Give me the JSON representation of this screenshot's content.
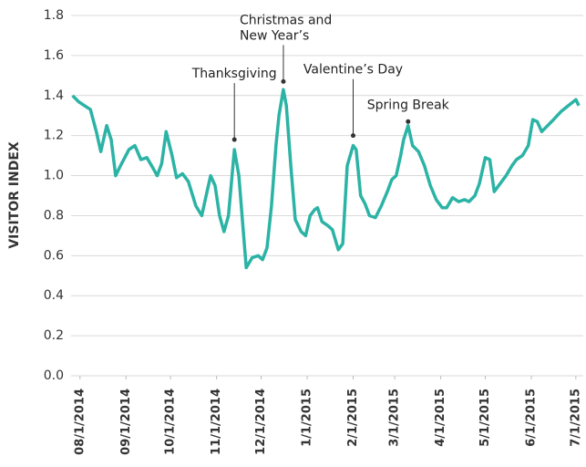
{
  "chart_data": {
    "type": "line",
    "ylabel": "VISITOR INDEX",
    "xlim": [
      "2014-07-26",
      "2015-07-06"
    ],
    "ylim": [
      0,
      1.8
    ],
    "yticks": [
      {
        "value": 0,
        "label": "0.0"
      },
      0.2,
      0.4,
      0.6,
      0.8,
      {
        "value": 1,
        "label": "1.0"
      },
      1.2,
      1.4,
      1.6,
      1.8
    ],
    "xticks": [
      {
        "value": "2014-08-01",
        "label": "08/1/2014"
      },
      {
        "value": "2014-09-01",
        "label": "09/1/2014"
      },
      {
        "value": "2014-10-01",
        "label": "10/1/2014"
      },
      {
        "value": "2014-11-01",
        "label": "11/1/2014"
      },
      {
        "value": "2014-12-01",
        "label": "12/1/2014"
      },
      {
        "value": "2015-01-01",
        "label": "1/1/2015"
      },
      {
        "value": "2015-02-01",
        "label": "2/1/2015"
      },
      {
        "value": "2015-03-01",
        "label": "3/1/2015"
      },
      {
        "value": "2015-04-01",
        "label": "4/1/2015"
      },
      {
        "value": "2015-05-01",
        "label": "5/1/2015"
      },
      {
        "value": "2015-06-01",
        "label": "6/1/2015"
      },
      {
        "value": "2015-07-01",
        "label": "7/1/2015"
      }
    ],
    "grid": true,
    "series": [
      {
        "name": "Visitor index",
        "color": "#2bb3a5",
        "x": [
          "2014-07-27",
          "2014-07-31",
          "2014-08-04",
          "2014-08-08",
          "2014-08-12",
          "2014-08-15",
          "2014-08-19",
          "2014-08-22",
          "2014-08-25",
          "2014-08-29",
          "2014-09-03",
          "2014-09-07",
          "2014-09-11",
          "2014-09-15",
          "2014-09-19",
          "2014-09-22",
          "2014-09-25",
          "2014-09-28",
          "2014-10-02",
          "2014-10-05",
          "2014-10-09",
          "2014-10-13",
          "2014-10-18",
          "2014-10-22",
          "2014-10-25",
          "2014-10-28",
          "2014-10-31",
          "2014-11-03",
          "2014-11-06",
          "2014-11-09",
          "2014-11-13",
          "2014-11-16",
          "2014-11-19",
          "2014-11-21",
          "2014-11-25",
          "2014-11-29",
          "2014-12-02",
          "2014-12-05",
          "2014-12-08",
          "2014-12-11",
          "2014-12-13",
          "2014-12-16",
          "2014-12-18",
          "2014-12-21",
          "2014-12-24",
          "2014-12-28",
          "2014-12-31",
          "2015-01-03",
          "2015-01-06",
          "2015-01-08",
          "2015-01-11",
          "2015-01-15",
          "2015-01-18",
          "2015-01-22",
          "2015-01-25",
          "2015-01-28",
          "2015-02-01",
          "2015-02-03",
          "2015-02-06",
          "2015-02-09",
          "2015-02-12",
          "2015-02-16",
          "2015-02-20",
          "2015-02-24",
          "2015-02-27",
          "2015-03-02",
          "2015-03-05",
          "2015-03-07",
          "2015-03-10",
          "2015-03-13",
          "2015-03-17",
          "2015-03-21",
          "2015-03-25",
          "2015-03-29",
          "2015-04-02",
          "2015-04-05",
          "2015-04-09",
          "2015-04-13",
          "2015-04-17",
          "2015-04-20",
          "2015-04-24",
          "2015-04-27",
          "2015-05-01",
          "2015-05-04",
          "2015-05-07",
          "2015-05-11",
          "2015-05-15",
          "2015-05-19",
          "2015-05-22",
          "2015-05-26",
          "2015-05-30",
          "2015-06-02",
          "2015-06-05",
          "2015-06-08",
          "2015-06-12",
          "2015-06-16",
          "2015-06-21",
          "2015-06-26",
          "2015-07-01",
          "2015-07-03"
        ],
        "values": [
          1.4,
          1.37,
          1.35,
          1.33,
          1.22,
          1.12,
          1.25,
          1.18,
          1.0,
          1.06,
          1.13,
          1.15,
          1.08,
          1.09,
          1.04,
          1.0,
          1.06,
          1.22,
          1.1,
          0.99,
          1.01,
          0.97,
          0.85,
          0.8,
          0.9,
          1.0,
          0.95,
          0.8,
          0.72,
          0.8,
          1.13,
          1.0,
          0.72,
          0.54,
          0.59,
          0.6,
          0.58,
          0.64,
          0.85,
          1.15,
          1.3,
          1.43,
          1.35,
          1.05,
          0.78,
          0.72,
          0.7,
          0.8,
          0.83,
          0.84,
          0.77,
          0.75,
          0.73,
          0.63,
          0.66,
          1.05,
          1.15,
          1.13,
          0.9,
          0.86,
          0.8,
          0.79,
          0.85,
          0.92,
          0.98,
          1.0,
          1.1,
          1.18,
          1.25,
          1.15,
          1.12,
          1.05,
          0.95,
          0.88,
          0.84,
          0.84,
          0.89,
          0.87,
          0.88,
          0.87,
          0.9,
          0.96,
          1.09,
          1.08,
          0.92,
          0.96,
          1.0,
          1.05,
          1.08,
          1.1,
          1.15,
          1.28,
          1.27,
          1.22,
          1.25,
          1.28,
          1.32,
          1.35,
          1.38,
          1.35
        ]
      }
    ],
    "annotations": [
      {
        "text": [
          "Thanksgiving"
        ],
        "x": "2014-11-13",
        "y": 1.18
      },
      {
        "text": [
          "Christmas and",
          "New Year’s"
        ],
        "x": "2014-12-16",
        "y": 1.47
      },
      {
        "text": [
          "Valentine’s Day"
        ],
        "x": "2015-02-01",
        "y": 1.2
      },
      {
        "text": [
          "Spring Break"
        ],
        "x": "2015-03-10",
        "y": 1.27
      }
    ]
  }
}
